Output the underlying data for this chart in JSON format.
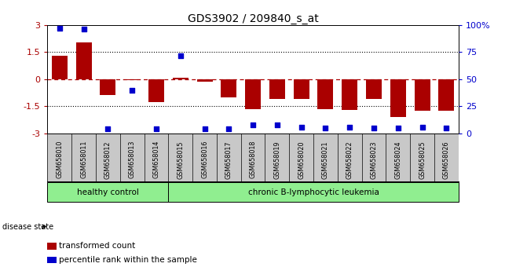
{
  "title": "GDS3902 / 209840_s_at",
  "samples": [
    "GSM658010",
    "GSM658011",
    "GSM658012",
    "GSM658013",
    "GSM658014",
    "GSM658015",
    "GSM658016",
    "GSM658017",
    "GSM658018",
    "GSM658019",
    "GSM658020",
    "GSM658021",
    "GSM658022",
    "GSM658023",
    "GSM658024",
    "GSM658025",
    "GSM658026"
  ],
  "bar_values": [
    1.3,
    2.05,
    -0.85,
    -0.05,
    -1.25,
    0.1,
    -0.15,
    -1.0,
    -1.65,
    -1.1,
    -1.1,
    -1.65,
    -1.7,
    -1.1,
    -2.1,
    -1.75,
    -1.75
  ],
  "percentile_values": [
    97,
    96,
    4,
    40,
    4,
    72,
    4,
    4,
    8,
    8,
    6,
    5,
    6,
    5,
    5,
    6,
    5
  ],
  "bar_color": "#AA0000",
  "dot_color": "#0000CC",
  "ylim_left": [
    -3.0,
    3.0
  ],
  "ylim_right": [
    0,
    100
  ],
  "yticks_left": [
    -3,
    -1.5,
    0,
    1.5,
    3
  ],
  "ytick_labels_left": [
    "-3",
    "-1.5",
    "0",
    "1.5",
    "3"
  ],
  "yticks_right": [
    0,
    25,
    50,
    75,
    100
  ],
  "ytick_labels_right": [
    "0",
    "25",
    "50",
    "75",
    "100%"
  ],
  "dotted_lines": [
    1.5,
    -1.5
  ],
  "red_dashed_line": 0,
  "group1_label": "healthy control",
  "group2_label": "chronic B-lymphocytic leukemia",
  "group1_indices": [
    0,
    1,
    2,
    3,
    4
  ],
  "group2_indices": [
    5,
    6,
    7,
    8,
    9,
    10,
    11,
    12,
    13,
    14,
    15,
    16
  ],
  "disease_state_label": "disease state",
  "group1_color": "#90EE90",
  "group2_color": "#90EE90",
  "tick_area_color": "#C8C8C8",
  "legend_bar_label": "transformed count",
  "legend_dot_label": "percentile rank within the sample",
  "background_color": "#FFFFFF"
}
